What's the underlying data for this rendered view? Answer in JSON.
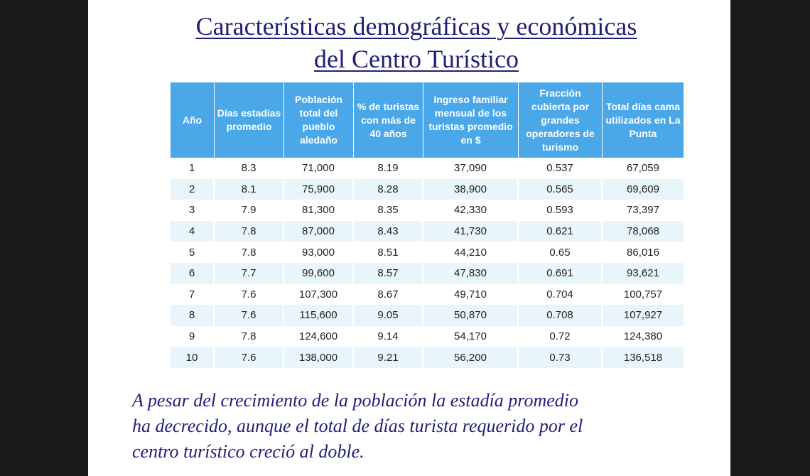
{
  "title": {
    "line1": "Características demográficas y económicas",
    "line2": "del Centro Turístico"
  },
  "table": {
    "headers": [
      "Año",
      "Días estadías promedio",
      "Población total del pueblo aledaño",
      "% de turistas con más de 40 años",
      "Ingreso familiar mensual de los turistas promedio en $",
      "Fracción cubierta por grandes operadores de turismo",
      "Total días cama utilizados en La Punta"
    ],
    "header_color": "#4aa8e8",
    "stripe_color": "#e8f5fb",
    "rows": [
      [
        "1",
        "8.3",
        "71,000",
        "8.19",
        "37,090",
        "0.537",
        "67,059"
      ],
      [
        "2",
        "8.1",
        "75,900",
        "8.28",
        "38,900",
        "0.565",
        "69,609"
      ],
      [
        "3",
        "7.9",
        "81,300",
        "8.35",
        "42,330",
        "0.593",
        "73,397"
      ],
      [
        "4",
        "7.8",
        "87,000",
        "8.43",
        "41,730",
        "0.621",
        "78,068"
      ],
      [
        "5",
        "7.8",
        "93,000",
        "8.51",
        "44,210",
        "0.65",
        "86,016"
      ],
      [
        "6",
        "7.7",
        "99,600",
        "8.57",
        "47,830",
        "0.691",
        "93,621"
      ],
      [
        "7",
        "7.6",
        "107,300",
        "8.67",
        "49,710",
        "0.704",
        "100,757"
      ],
      [
        "8",
        "7.6",
        "115,600",
        "9.05",
        "50,870",
        "0.708",
        "107,927"
      ],
      [
        "9",
        "7.8",
        "124,600",
        "9.14",
        "54,170",
        "0.72",
        "124,380"
      ],
      [
        "10",
        "7.6",
        "138,000",
        "9.21",
        "56,200",
        "0.73",
        "136,518"
      ]
    ]
  },
  "note": {
    "line1": "A pesar del crecimiento de la población  la estadía  promedio",
    "line2": "ha decrecido, aunque el total de días turista requerido por el",
    "line3": "centro turístico creció  al doble."
  }
}
